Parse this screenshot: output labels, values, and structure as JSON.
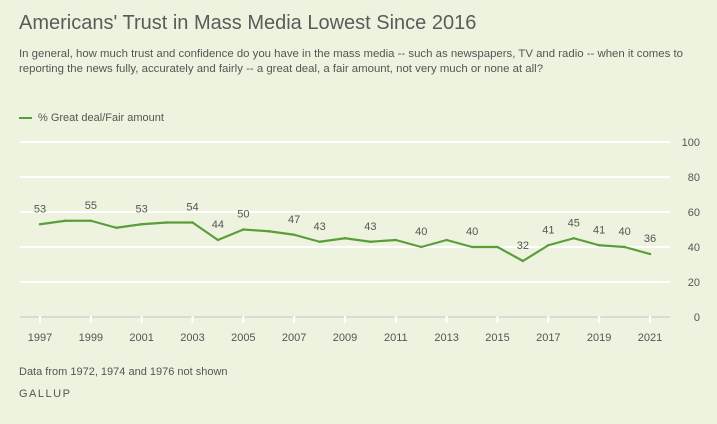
{
  "chart_data": {
    "type": "line",
    "title": "Americans' Trust in Mass Media Lowest Since 2016",
    "subtitle": "In general, how much trust and confidence do you have in the mass media -- such as newspapers, TV and radio -- when it comes to reporting the news fully, accurately and fairly -- a great deal, a fair amount, not very much or none at all?",
    "x": [
      1997,
      1998,
      1999,
      2000,
      2001,
      2002,
      2003,
      2004,
      2005,
      2006,
      2007,
      2008,
      2009,
      2010,
      2011,
      2012,
      2013,
      2014,
      2015,
      2016,
      2017,
      2018,
      2019,
      2020,
      2021
    ],
    "series": [
      {
        "name": "% Great deal/Fair amount",
        "color": "#5a9e3a",
        "values": [
          53,
          55,
          55,
          51,
          53,
          54,
          54,
          44,
          50,
          49,
          47,
          43,
          45,
          43,
          44,
          40,
          44,
          40,
          40,
          32,
          41,
          45,
          41,
          40,
          36
        ],
        "labeled": [
          true,
          false,
          true,
          false,
          true,
          false,
          true,
          true,
          true,
          false,
          true,
          true,
          false,
          true,
          false,
          true,
          false,
          true,
          false,
          true,
          true,
          true,
          true,
          true,
          true
        ]
      }
    ],
    "xticks": [
      "1997",
      "1999",
      "2001",
      "2003",
      "2005",
      "2007",
      "2009",
      "2011",
      "2013",
      "2015",
      "2017",
      "2019",
      "2021"
    ],
    "yticks": [
      "0",
      "20",
      "40",
      "60",
      "80",
      "100"
    ],
    "ylim": [
      0,
      100
    ],
    "grid": true,
    "legend_position": "top-left",
    "note": "Data from 1972, 1974 and 1976 not shown",
    "source": "GALLUP"
  }
}
